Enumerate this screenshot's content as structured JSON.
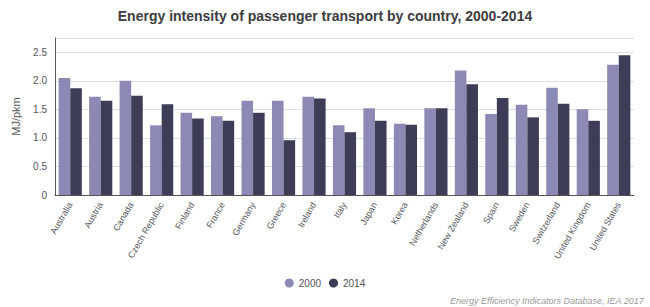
{
  "chart_data": {
    "type": "bar",
    "title": "Energy intensity of passenger transport by country, 2000-2014",
    "ylabel": "MJ/pkm",
    "footnote": "Energy Efficiency Indicators Database, IEA 2017",
    "categories": [
      "Australia",
      "Austria",
      "Canada",
      "Czech Republic",
      "Finland",
      "France",
      "Germany",
      "Greece",
      "Ireland",
      "Italy",
      "Japan",
      "Korea",
      "Netherlands",
      "New Zealand",
      "Spain",
      "Sweden",
      "Switzerland",
      "United Kingdom",
      "United States"
    ],
    "series": [
      {
        "name": "2000",
        "color": "#8c89b4",
        "values": [
          2.05,
          1.72,
          2.0,
          1.22,
          1.44,
          1.38,
          1.65,
          1.65,
          1.72,
          1.22,
          1.52,
          1.25,
          1.52,
          2.18,
          1.42,
          1.58,
          1.88,
          1.5,
          2.28
        ]
      },
      {
        "name": "2014",
        "color": "#3d3d58",
        "values": [
          1.87,
          1.65,
          1.74,
          1.59,
          1.34,
          1.3,
          1.44,
          0.96,
          1.69,
          1.1,
          1.3,
          1.23,
          1.52,
          1.94,
          1.7,
          1.36,
          1.6,
          1.3,
          2.45
        ]
      }
    ],
    "ylim": [
      0,
      2.75
    ],
    "yticks": [
      0,
      0.5,
      {
        "value": 1,
        "label": "1.0"
      },
      1.5,
      {
        "value": 2,
        "label": "2.0"
      },
      2.5
    ],
    "grid": true,
    "legend": "bottom"
  }
}
